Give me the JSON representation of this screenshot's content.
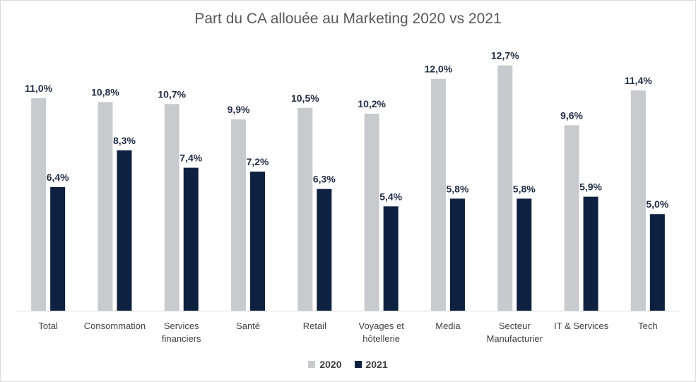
{
  "chart_data": {
    "type": "bar",
    "title": "Part du CA allouée au Marketing 2020 vs 2021",
    "categories": [
      [
        "Total"
      ],
      [
        "Consommation"
      ],
      [
        "Services",
        "financiers"
      ],
      [
        "Santé"
      ],
      [
        "Retail"
      ],
      [
        "Voyages et",
        "hôtellerie"
      ],
      [
        "Media"
      ],
      [
        "Secteur",
        "Manufacturier"
      ],
      [
        "IT & Services"
      ],
      [
        "Tech"
      ]
    ],
    "series": [
      {
        "name": "2020",
        "color": "#c8cace",
        "values": [
          11.0,
          10.8,
          10.7,
          9.9,
          10.5,
          10.2,
          12.0,
          12.7,
          9.6,
          11.4
        ],
        "labels": [
          "11,0%",
          "10,8%",
          "10,7%",
          "9,9%",
          "10,5%",
          "10,2%",
          "12,0%",
          "12,7%",
          "9,6%",
          "11,4%"
        ]
      },
      {
        "name": "2021",
        "color": "#0f2140",
        "values": [
          6.4,
          8.3,
          7.4,
          7.2,
          6.3,
          5.4,
          5.8,
          5.8,
          5.9,
          5.0
        ],
        "labels": [
          "6,4%",
          "8,3%",
          "7,4%",
          "7,2%",
          "6,3%",
          "5,4%",
          "5,8%",
          "5,8%",
          "5,9%",
          "5,0%"
        ]
      }
    ],
    "ylim": [
      0,
      14
    ],
    "grid": false,
    "legend_position": "bottom"
  }
}
